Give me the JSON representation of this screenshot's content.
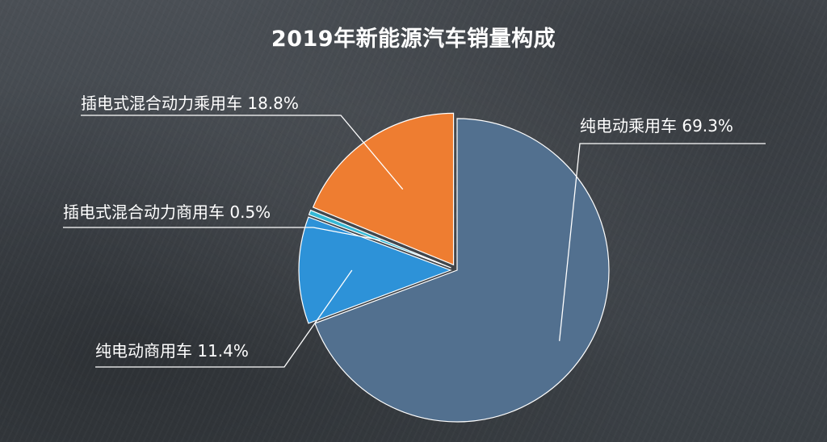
{
  "chart_data": {
    "type": "pie",
    "title": "2019年新能源汽车销量构成",
    "unit": "%",
    "slices": [
      {
        "label": "纯电动乘用车",
        "value": 69.3,
        "color": "#52708f",
        "display": "纯电动乘用车 69.3%"
      },
      {
        "label": "纯电动商用车",
        "value": 11.4,
        "color": "#2d92d8",
        "display": "纯电动商用车 11.4%"
      },
      {
        "label": "插电式混合动力商用车",
        "value": 0.5,
        "color": "#35b8d5",
        "display": "插电式混合动力商用车 0.5%"
      },
      {
        "label": "插电式混合动力乘用车",
        "value": 18.8,
        "color": "#ee7d31",
        "display": "插电式混合动力乘用车 18.8%"
      }
    ]
  }
}
